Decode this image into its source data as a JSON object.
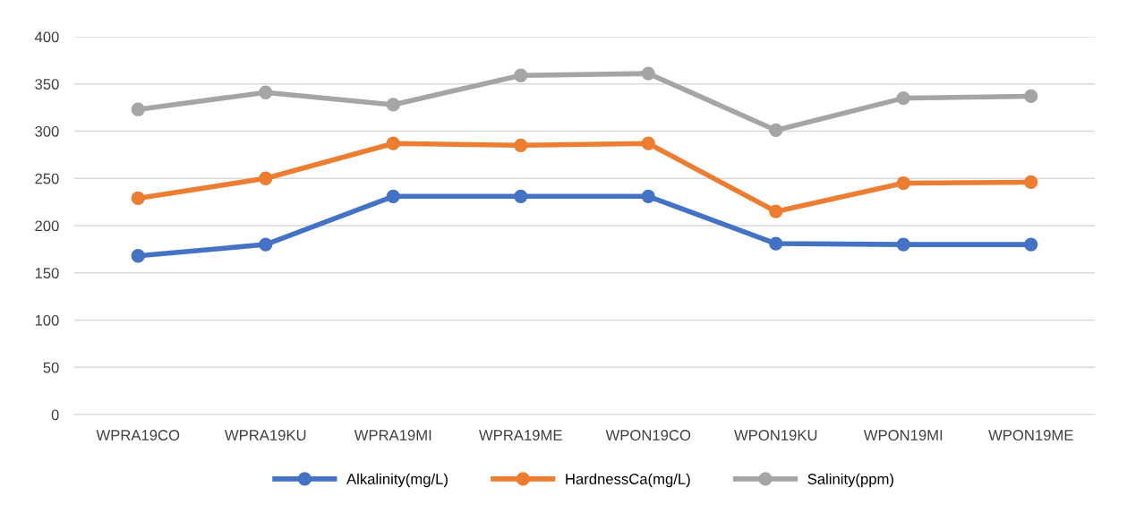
{
  "chart_data": {
    "type": "line",
    "categories": [
      "WPRA19CO",
      "WPRA19KU",
      "WPRA19MI",
      "WPRA19ME",
      "WPON19CO",
      "WPON19KU",
      "WPON19MI",
      "WPON19ME"
    ],
    "series": [
      {
        "name": "Alkalinity(mg/L)",
        "color": "#4472c4",
        "values": [
          168,
          180,
          231,
          231,
          231,
          181,
          180,
          180
        ]
      },
      {
        "name": "HardnessCa(mg/L)",
        "color": "#ed7d31",
        "values": [
          229,
          250,
          287,
          285,
          287,
          215,
          245,
          246
        ]
      },
      {
        "name": "Salinity(ppm)",
        "color": "#a5a5a5",
        "values": [
          323,
          341,
          328,
          359,
          361,
          301,
          335,
          337
        ]
      }
    ],
    "ylim": [
      0,
      400
    ],
    "yticks": [
      0,
      50,
      100,
      150,
      200,
      250,
      300,
      350,
      400
    ],
    "grid": "y",
    "legend": "bottom",
    "marker": "circle",
    "line_style": "solid"
  }
}
